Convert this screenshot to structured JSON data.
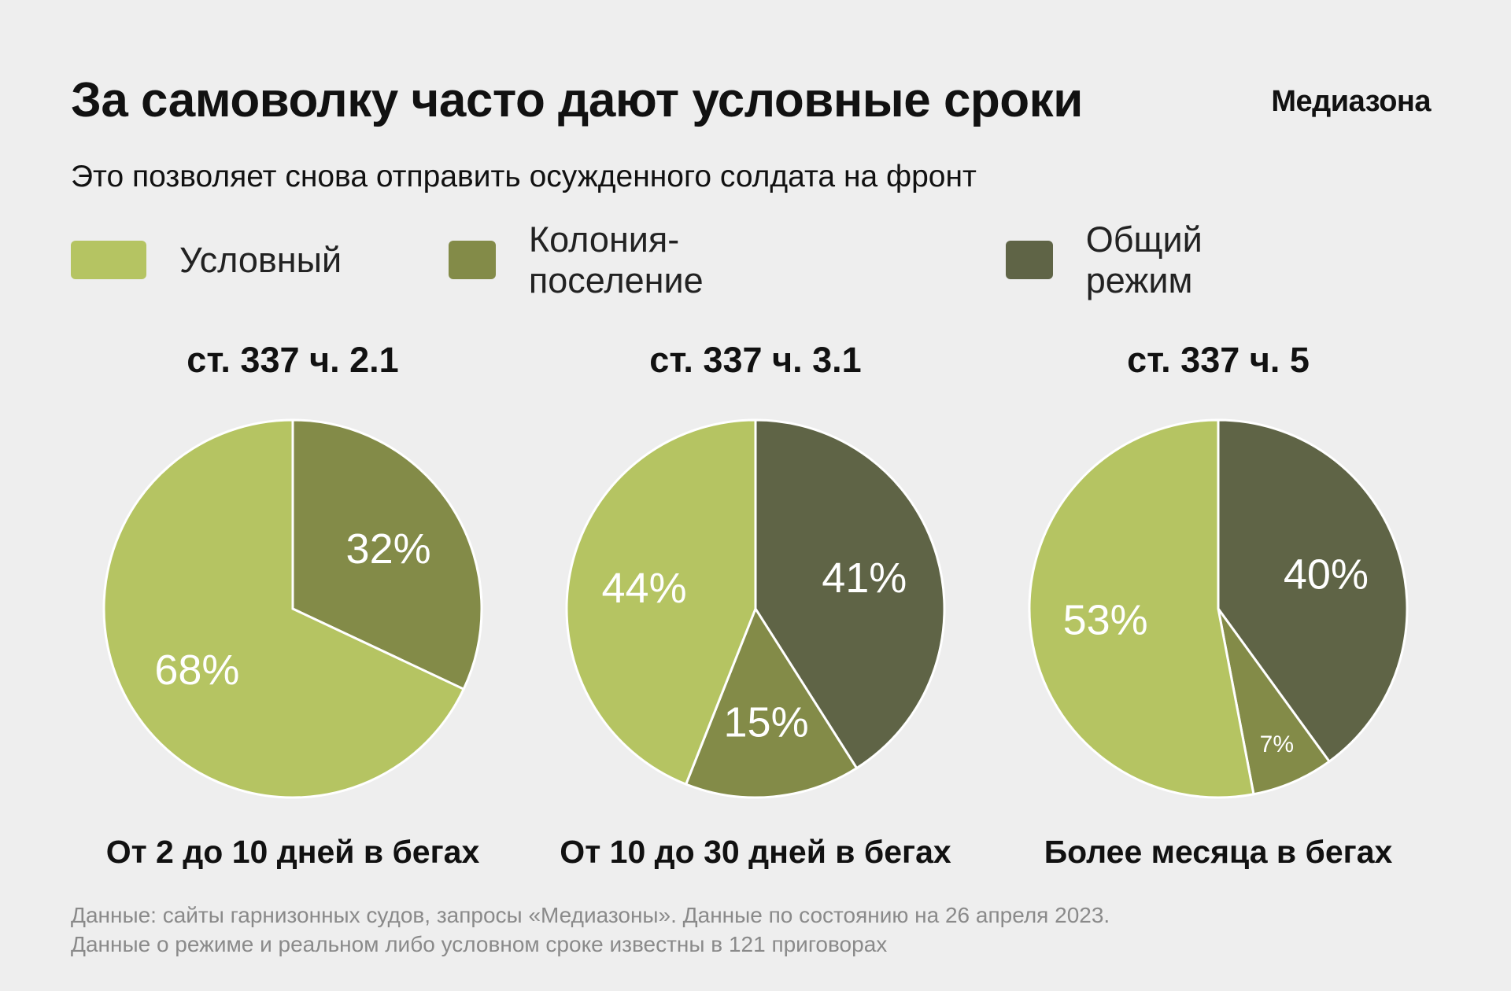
{
  "header": {
    "title": "За самоволку часто дают условные сроки",
    "logo": "Медиазона",
    "subtitle": "Это позволяет снова отправить осужденного солдата на фронт"
  },
  "legend": [
    {
      "label": "Условный",
      "color": "#b5c462"
    },
    {
      "label": "Колония-поселение",
      "color": "#838b48"
    },
    {
      "label": "Общий режим",
      "color": "#5f6446"
    }
  ],
  "chart_data": [
    {
      "type": "pie",
      "title": "ст. 337 ч. 2.1",
      "subtitle": "От 2 до 10 дней в бегах",
      "slices": [
        {
          "name": "Колония-поселение",
          "value": 32,
          "label": "32%"
        },
        {
          "name": "Условный",
          "value": 68,
          "label": "68%"
        }
      ]
    },
    {
      "type": "pie",
      "title": "ст. 337 ч. 3.1",
      "subtitle": "От 10 до 30 дней в бегах",
      "slices": [
        {
          "name": "Общий режим",
          "value": 41,
          "label": "41%"
        },
        {
          "name": "Колония-поселение",
          "value": 15,
          "label": "15%"
        },
        {
          "name": "Условный",
          "value": 44,
          "label": "44%"
        }
      ]
    },
    {
      "type": "pie",
      "title": "ст. 337 ч. 5",
      "subtitle": "Более месяца в бегах",
      "slices": [
        {
          "name": "Общий режим",
          "value": 40,
          "label": "40%"
        },
        {
          "name": "Колония-поселение",
          "value": 7,
          "label": "7%"
        },
        {
          "name": "Условный",
          "value": 53,
          "label": "53%"
        }
      ]
    }
  ],
  "footer": {
    "line1": "Данные: сайты гарнизонных судов, запросы «Медиазоны». Данные по состоянию на 26 апреля 2023.",
    "line2": "Данные о режиме и реальном либо условном сроке известны в 121 приговорах"
  }
}
